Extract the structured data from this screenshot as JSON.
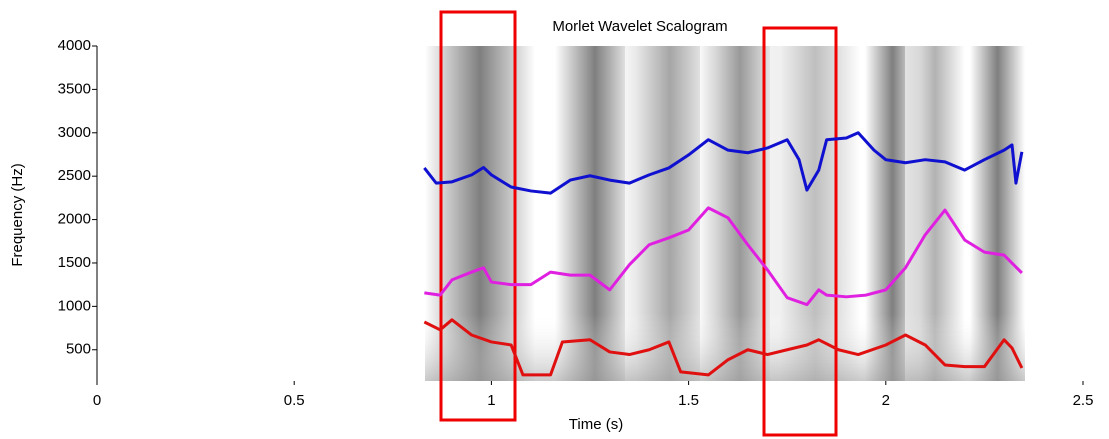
{
  "chart_data": {
    "type": "line",
    "title": "Morlet Wavelet Scalogram",
    "x_label": "Time (s)",
    "y_label": "Frequency (Hz)",
    "xlim": [
      0,
      2.5
    ],
    "xticks": [
      0,
      0.5,
      1,
      1.5,
      2,
      2.5
    ],
    "ylim": [
      140,
      4000
    ],
    "yticks": [
      500,
      1000,
      1500,
      2000,
      2500,
      3000,
      3500,
      4000
    ],
    "series": [
      {
        "color": "#1010d0",
        "x": [
          0.83,
          0.86,
          0.9,
          0.95,
          0.98,
          1.0,
          1.05,
          1.1,
          1.15,
          1.2,
          1.25,
          1.3,
          1.35,
          1.4,
          1.45,
          1.5,
          1.55,
          1.6,
          1.65,
          1.7,
          1.75,
          1.78,
          1.8,
          1.83,
          1.85,
          1.9,
          1.93,
          1.97,
          2.0,
          2.05,
          2.1,
          2.15,
          2.2,
          2.25,
          2.3,
          2.32,
          2.33,
          2.345
        ],
        "values": [
          2595,
          2420,
          2435,
          2515,
          2600,
          2515,
          2375,
          2330,
          2305,
          2455,
          2505,
          2455,
          2420,
          2515,
          2595,
          2745,
          2920,
          2800,
          2770,
          2825,
          2920,
          2690,
          2340,
          2570,
          2920,
          2940,
          3000,
          2800,
          2690,
          2655,
          2690,
          2665,
          2570,
          2690,
          2800,
          2860,
          2420,
          2780
        ]
      },
      {
        "color": "#e020e0",
        "x": [
          0.83,
          0.87,
          0.9,
          0.95,
          0.98,
          1.0,
          1.05,
          1.1,
          1.15,
          1.2,
          1.25,
          1.3,
          1.35,
          1.4,
          1.45,
          1.5,
          1.55,
          1.6,
          1.65,
          1.7,
          1.75,
          1.8,
          1.83,
          1.85,
          1.9,
          1.95,
          2.0,
          2.05,
          2.1,
          2.15,
          2.2,
          2.25,
          2.3,
          2.345
        ],
        "values": [
          1155,
          1130,
          1305,
          1395,
          1445,
          1280,
          1250,
          1250,
          1395,
          1360,
          1360,
          1190,
          1480,
          1710,
          1790,
          1880,
          2135,
          2020,
          1710,
          1420,
          1100,
          1020,
          1190,
          1130,
          1110,
          1130,
          1190,
          1445,
          1825,
          2110,
          1765,
          1625,
          1590,
          1385
        ]
      },
      {
        "color": "#e01010",
        "x": [
          0.83,
          0.87,
          0.9,
          0.95,
          1.0,
          1.05,
          1.08,
          1.15,
          1.18,
          1.25,
          1.3,
          1.35,
          1.4,
          1.45,
          1.48,
          1.55,
          1.6,
          1.65,
          1.7,
          1.75,
          1.8,
          1.83,
          1.88,
          1.93,
          2.0,
          2.05,
          2.1,
          2.15,
          2.2,
          2.25,
          2.3,
          2.32,
          2.345
        ],
        "values": [
          820,
          730,
          845,
          670,
          590,
          555,
          210,
          210,
          590,
          615,
          475,
          445,
          500,
          590,
          245,
          210,
          385,
          500,
          445,
          500,
          555,
          615,
          500,
          445,
          555,
          670,
          555,
          325,
          305,
          305,
          615,
          520,
          290
        ]
      }
    ]
  }
}
